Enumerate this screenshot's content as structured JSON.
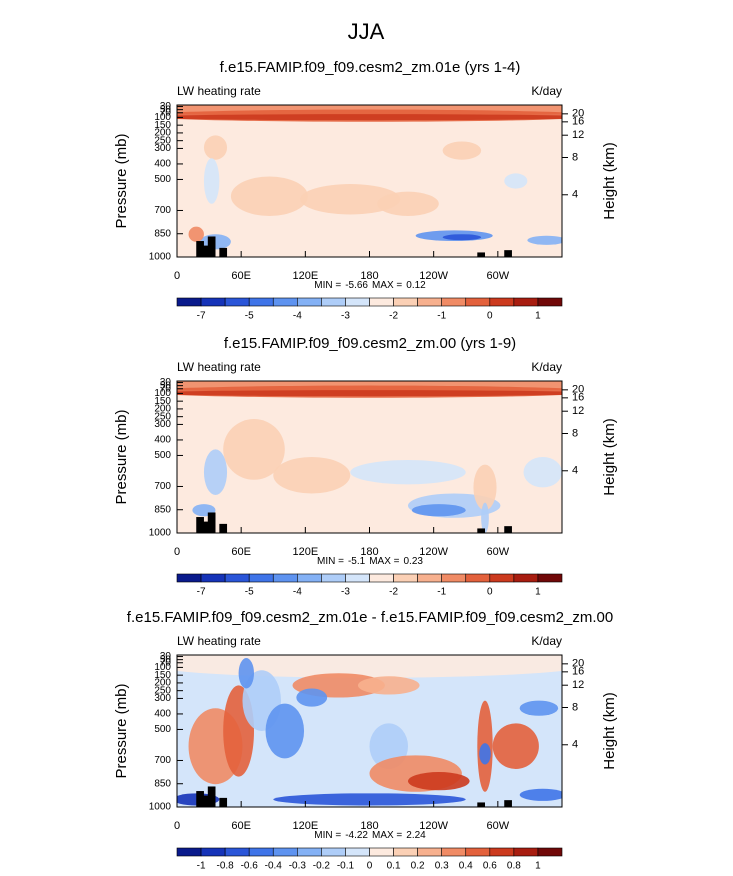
{
  "title": "JJA",
  "panels": [
    {
      "title": "f.e15.FAMIP.f09_f09.cesm2_zm.01e (yrs 1-4)",
      "left_label": "LW heating rate",
      "right_label": "K/day",
      "y_label": "Pressure (mb)",
      "y2_label": "Height (km)",
      "xlim": [
        0,
        360
      ],
      "xticks": [
        0,
        {
          "value": 60,
          "label": "60E"
        },
        {
          "value": 120,
          "label": "120E"
        },
        180,
        {
          "value": 240,
          "label": "120W"
        },
        {
          "value": 300,
          "label": "60W"
        }
      ],
      "ylim": [
        1000,
        20
      ],
      "yticks": [
        1000,
        850,
        700,
        500,
        400,
        300,
        250,
        200,
        150,
        100,
        70,
        50,
        30
      ],
      "y2ticks": [
        4,
        8,
        12,
        16,
        20
      ],
      "min_label": "MIN =",
      "min": -5.66,
      "max_label": "MAX =",
      "max": 0.12,
      "colorbar": {
        "ticks": [
          -7,
          -5,
          -4,
          -3,
          -2,
          -1,
          0,
          1
        ],
        "colors": [
          "#0a1a8c",
          "#1533b8",
          "#2a55d8",
          "#3f74e8",
          "#5e93f0",
          "#84b1f5",
          "#aecdf8",
          "#d4e5fa",
          "#fdeadf",
          "#fbd0b5",
          "#f7b08e",
          "#f08b65",
          "#e3613c",
          "#cc3a1e",
          "#a81d10",
          "#700808"
        ]
      }
    },
    {
      "title": "f.e15.FAMIP.f09_f09.cesm2_zm.00 (yrs 1-9)",
      "left_label": "LW heating rate",
      "right_label": "K/day",
      "y_label": "Pressure (mb)",
      "y2_label": "Height (km)",
      "xlim": [
        0,
        360
      ],
      "xticks": [
        0,
        {
          "value": 60,
          "label": "60E"
        },
        {
          "value": 120,
          "label": "120E"
        },
        180,
        {
          "value": 240,
          "label": "120W"
        },
        {
          "value": 300,
          "label": "60W"
        }
      ],
      "ylim": [
        1000,
        20
      ],
      "yticks": [
        1000,
        850,
        700,
        500,
        400,
        300,
        250,
        200,
        150,
        100,
        70,
        50,
        30
      ],
      "y2ticks": [
        4,
        8,
        12,
        16,
        20
      ],
      "min_label": "MIN =",
      "min": -5.1,
      "max_label": "MAX =",
      "max": 0.23,
      "colorbar": {
        "ticks": [
          -7,
          -5,
          -4,
          -3,
          -2,
          -1,
          0,
          1
        ],
        "colors": [
          "#0a1a8c",
          "#1533b8",
          "#2a55d8",
          "#3f74e8",
          "#5e93f0",
          "#84b1f5",
          "#aecdf8",
          "#d4e5fa",
          "#fdeadf",
          "#fbd0b5",
          "#f7b08e",
          "#f08b65",
          "#e3613c",
          "#cc3a1e",
          "#a81d10",
          "#700808"
        ]
      }
    },
    {
      "title": "f.e15.FAMIP.f09_f09.cesm2_zm.01e - f.e15.FAMIP.f09_f09.cesm2_zm.00",
      "left_label": "LW heating rate",
      "right_label": "K/day",
      "y_label": "Pressure (mb)",
      "y2_label": "Height (km)",
      "xlim": [
        0,
        360
      ],
      "xticks": [
        0,
        {
          "value": 60,
          "label": "60E"
        },
        {
          "value": 120,
          "label": "120E"
        },
        180,
        {
          "value": 240,
          "label": "120W"
        },
        {
          "value": 300,
          "label": "60W"
        }
      ],
      "ylim": [
        1000,
        20
      ],
      "yticks": [
        1000,
        850,
        700,
        500,
        400,
        300,
        250,
        200,
        150,
        100,
        70,
        50,
        30
      ],
      "y2ticks": [
        4,
        8,
        12,
        16,
        20
      ],
      "min_label": "MIN =",
      "min": -4.22,
      "max_label": "MAX =",
      "max": 2.24,
      "colorbar": {
        "ticks": [
          -1,
          -0.8,
          -0.6,
          -0.4,
          -0.3,
          -0.2,
          -0.1,
          0,
          0.1,
          0.2,
          0.3,
          0.4,
          0.6,
          0.8,
          1
        ],
        "colors": [
          "#0a1a8c",
          "#1533b8",
          "#2a55d8",
          "#3f74e8",
          "#5e93f0",
          "#84b1f5",
          "#aecdf8",
          "#d4e5fa",
          "#fdeadf",
          "#fbd0b5",
          "#f7b08e",
          "#f08b65",
          "#e3613c",
          "#cc3a1e",
          "#a81d10",
          "#700808"
        ]
      }
    }
  ]
}
